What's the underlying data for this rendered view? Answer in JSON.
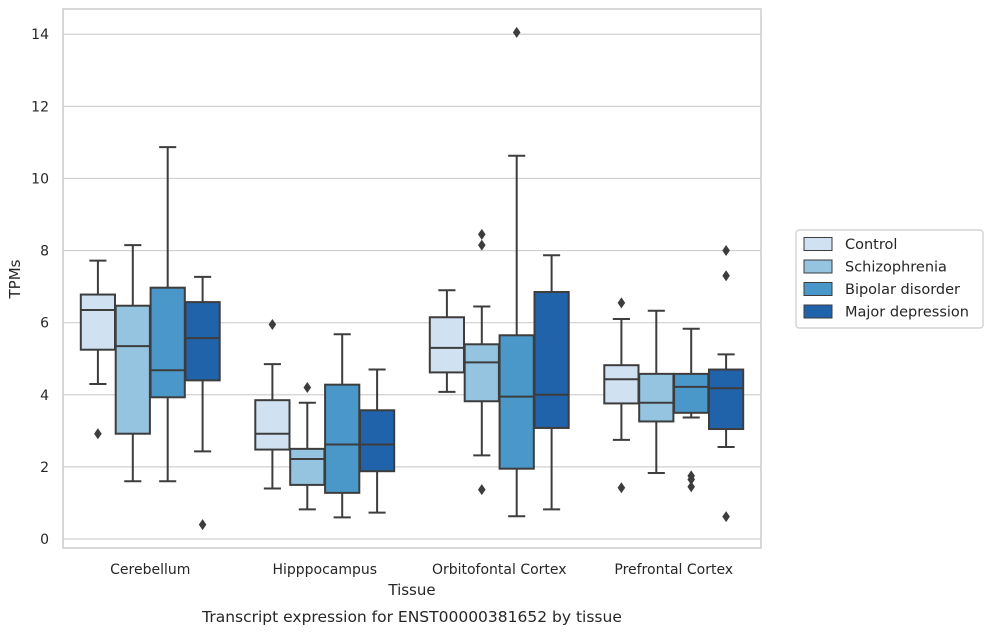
{
  "chart_data": {
    "type": "boxplot",
    "caption": "Transcript expression for ENST00000381652 by tissue",
    "xlabel": "Tissue",
    "ylabel": "TPMs",
    "ylim": [
      -0.25,
      14.7
    ],
    "yticks": [
      0,
      2,
      4,
      6,
      8,
      10,
      12,
      14
    ],
    "grid": "horizontal",
    "legend_position": "right",
    "categories": [
      "Cerebellum",
      "Hipppocampus",
      "Orbitofontal Cortex",
      "Prefrontal Cortex"
    ],
    "series": [
      {
        "name": "Control",
        "color": "#d0e1f2",
        "boxes": [
          {
            "whislo": 4.3,
            "q1": 5.25,
            "med": 6.35,
            "q3": 6.78,
            "whishi": 7.72,
            "fliers": [
              2.92
            ]
          },
          {
            "whislo": 1.4,
            "q1": 2.48,
            "med": 2.92,
            "q3": 3.85,
            "whishi": 4.85,
            "fliers": [
              5.95
            ]
          },
          {
            "whislo": 4.08,
            "q1": 4.62,
            "med": 5.3,
            "q3": 6.15,
            "whishi": 6.9,
            "fliers": []
          },
          {
            "whislo": 2.75,
            "q1": 3.76,
            "med": 4.43,
            "q3": 4.82,
            "whishi": 6.1,
            "fliers": [
              6.55,
              1.42
            ]
          }
        ]
      },
      {
        "name": "Schizophrenia",
        "color": "#94c4df",
        "boxes": [
          {
            "whislo": 1.6,
            "q1": 2.92,
            "med": 5.35,
            "q3": 6.47,
            "whishi": 8.15,
            "fliers": []
          },
          {
            "whislo": 0.82,
            "q1": 1.5,
            "med": 2.22,
            "q3": 2.5,
            "whishi": 3.78,
            "fliers": [
              4.2
            ]
          },
          {
            "whislo": 2.32,
            "q1": 3.82,
            "med": 4.9,
            "q3": 5.4,
            "whishi": 6.45,
            "fliers": [
              8.45,
              8.15,
              1.37
            ]
          },
          {
            "whislo": 1.83,
            "q1": 3.26,
            "med": 3.78,
            "q3": 4.58,
            "whishi": 6.33,
            "fliers": []
          }
        ]
      },
      {
        "name": "Bipolar disorder",
        "color": "#4a98c9",
        "boxes": [
          {
            "whislo": 1.6,
            "q1": 3.93,
            "med": 4.68,
            "q3": 6.97,
            "whishi": 10.87,
            "fliers": []
          },
          {
            "whislo": 0.6,
            "q1": 1.28,
            "med": 2.62,
            "q3": 4.28,
            "whishi": 5.68,
            "fliers": []
          },
          {
            "whislo": 0.63,
            "q1": 1.95,
            "med": 3.95,
            "q3": 5.65,
            "whishi": 10.63,
            "fliers": [
              14.05
            ]
          },
          {
            "whislo": 3.37,
            "q1": 3.5,
            "med": 4.22,
            "q3": 4.58,
            "whishi": 5.83,
            "fliers": [
              1.75,
              1.65,
              1.45
            ]
          }
        ]
      },
      {
        "name": "Major depression",
        "color": "#2163aa",
        "boxes": [
          {
            "whislo": 2.43,
            "q1": 4.4,
            "med": 5.57,
            "q3": 6.57,
            "whishi": 7.27,
            "fliers": [
              0.4
            ]
          },
          {
            "whislo": 0.73,
            "q1": 1.88,
            "med": 2.62,
            "q3": 3.57,
            "whishi": 4.7,
            "fliers": []
          },
          {
            "whislo": 0.82,
            "q1": 3.08,
            "med": 4.0,
            "q3": 6.85,
            "whishi": 7.87,
            "fliers": []
          },
          {
            "whislo": 2.55,
            "q1": 3.05,
            "med": 4.18,
            "q3": 4.7,
            "whishi": 5.12,
            "fliers": [
              8.0,
              7.3,
              0.62
            ]
          }
        ]
      }
    ]
  }
}
